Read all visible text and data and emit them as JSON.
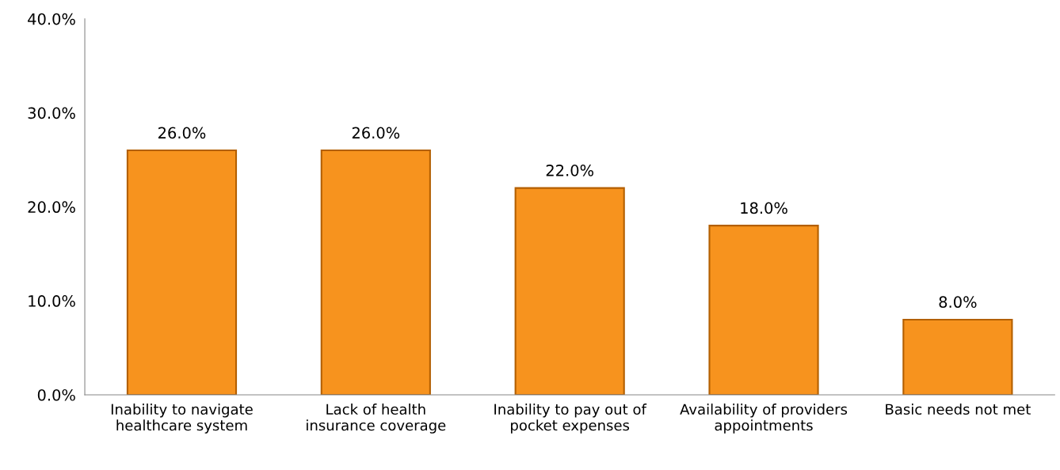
{
  "chart_data": {
    "type": "bar",
    "categories": [
      "Inability to navigate\nhealthcare system",
      "Lack of health\ninsurance coverage",
      "Inability to pay out of\npocket expenses",
      "Availability of providers\nappointments",
      "Basic needs not met"
    ],
    "values": [
      26.0,
      26.0,
      22.0,
      18.0,
      8.0
    ],
    "value_labels": [
      "26.0%",
      "26.0%",
      "22.0%",
      "18.0%",
      "8.0%"
    ],
    "color": "#f7931e",
    "ylim": [
      0,
      40
    ],
    "yticks": [
      {
        "value": 0,
        "label": "0.0%"
      },
      {
        "value": 10,
        "label": "10.0%"
      },
      {
        "value": 20,
        "label": "20.0%"
      },
      {
        "value": 30,
        "label": "30.0%"
      },
      {
        "value": 40,
        "label": "40.0%"
      }
    ],
    "grid": false
  }
}
